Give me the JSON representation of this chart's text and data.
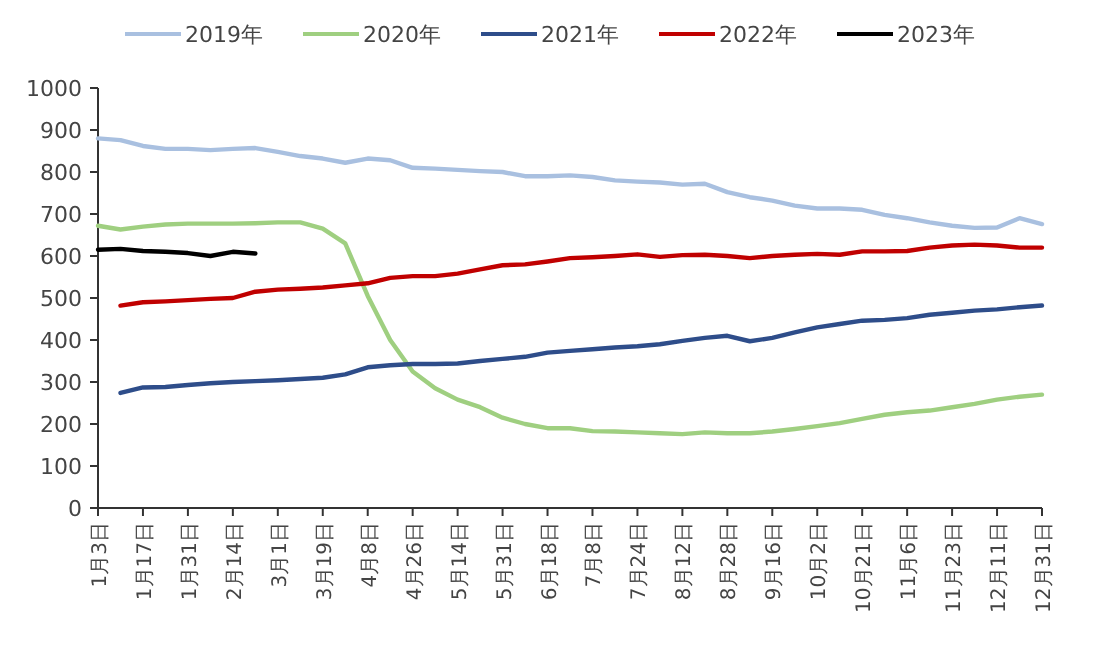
{
  "chart_data": {
    "type": "line",
    "categories": [
      "1月3日",
      null,
      "1月17日",
      null,
      "1月31日",
      null,
      "2月14日",
      null,
      "3月1日",
      null,
      "3月19日",
      null,
      "4月8日",
      null,
      "4月26日",
      null,
      "5月14日",
      null,
      "5月31日",
      null,
      "6月18日",
      null,
      "7月8日",
      null,
      "7月24日",
      null,
      "8月12日",
      null,
      "8月28日",
      null,
      "9月16日",
      null,
      "10月2日",
      null,
      "10月21日",
      null,
      "11月6日",
      null,
      "11月23日",
      null,
      "12月11日",
      null,
      "12月31日"
    ],
    "series": [
      {
        "name": "2019年",
        "color": "#a9c0e0",
        "values": [
          880,
          876,
          862,
          855,
          855,
          852,
          855,
          857,
          848,
          838,
          832,
          822,
          832,
          828,
          810,
          808,
          805,
          802,
          800,
          790,
          790,
          792,
          788,
          780,
          777,
          775,
          770,
          772,
          752,
          740,
          732,
          720,
          713,
          713,
          710,
          698,
          690,
          680,
          672,
          667,
          668,
          690,
          676
        ]
      },
      {
        "name": "2020年",
        "color": "#9fcf80",
        "values": [
          672,
          663,
          670,
          675,
          677,
          677,
          677,
          678,
          680,
          680,
          665,
          630,
          505,
          400,
          325,
          285,
          258,
          240,
          215,
          200,
          190,
          190,
          183,
          182,
          180,
          178,
          176,
          180,
          178,
          178,
          182,
          188,
          195,
          202,
          212,
          222,
          228,
          232,
          240,
          248,
          258,
          265,
          270
        ]
      },
      {
        "name": "2021年",
        "color": "#2e4d8a",
        "values": [
          null,
          274,
          287,
          288,
          293,
          297,
          300,
          302,
          304,
          307,
          310,
          318,
          335,
          340,
          343,
          343,
          344,
          350,
          355,
          360,
          370,
          374,
          378,
          382,
          385,
          390,
          398,
          405,
          410,
          397,
          405,
          418,
          430,
          438,
          446,
          448,
          452,
          460,
          465,
          470,
          473,
          478,
          482
        ]
      },
      {
        "name": "2022年",
        "color": "#c00000",
        "values": [
          null,
          482,
          490,
          492,
          495,
          498,
          500,
          515,
          520,
          522,
          525,
          530,
          535,
          548,
          552,
          552,
          558,
          568,
          578,
          580,
          587,
          595,
          597,
          600,
          604,
          598,
          602,
          603,
          600,
          595,
          600,
          603,
          605,
          603,
          611,
          611,
          612,
          620,
          625,
          627,
          625,
          620,
          620
        ]
      },
      {
        "name": "2023年",
        "color": "#000000",
        "values": [
          615,
          617,
          612,
          610,
          607,
          600,
          610,
          606,
          null,
          null,
          null,
          null,
          null,
          null,
          null,
          null,
          null,
          null,
          null,
          null,
          null,
          null,
          null,
          null,
          null,
          null,
          null,
          null,
          null,
          null,
          null,
          null,
          null,
          null,
          null,
          null,
          null,
          null,
          null,
          null,
          null,
          null,
          null
        ]
      }
    ],
    "ylim": [
      0,
      1000
    ],
    "yticks": [
      0,
      100,
      200,
      300,
      400,
      500,
      600,
      700,
      800,
      900,
      1000
    ],
    "grid": false,
    "legend": "top"
  }
}
